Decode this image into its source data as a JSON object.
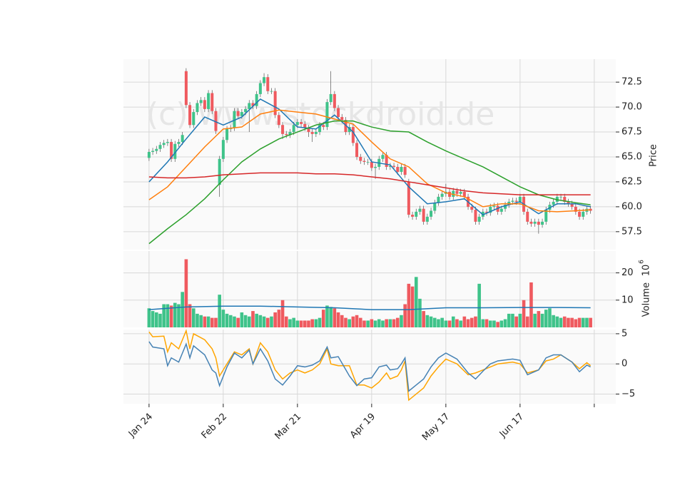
{
  "chart_data": [
    {
      "type": "candlestick",
      "watermark": "(c) www.stockdroid.de",
      "ylabel": "Price",
      "up_color": "#3fc38a",
      "down_color": "#ef5a5f",
      "open": [
        64.9,
        65.5,
        65.6,
        65.8,
        66.2,
        66.4,
        66.5,
        64.8,
        66.3,
        66.5,
        73.6,
        70.2,
        68.2,
        69.5,
        70.4,
        70.7,
        69.8,
        71.4,
        69.6,
        62.2,
        64.8,
        66.7,
        67.8,
        67.9,
        69.6,
        69.1,
        69.5,
        69.8,
        70.4,
        70.1,
        71.3,
        72.4,
        73.0,
        71.6,
        71.6,
        69.2,
        68.2,
        67.3,
        67.2,
        67.5,
        68.2,
        68.5,
        68.3,
        67.9,
        67.5,
        67.3,
        67.5,
        68.2,
        68.0,
        70.5,
        71.3,
        69.9,
        69.0,
        68.7,
        67.5,
        68.0,
        66.4,
        65.0,
        64.6,
        64.5,
        64.5,
        63.9,
        64.0,
        64.8,
        65.2,
        64.0,
        64.1,
        64.0,
        63.5,
        64.0,
        62.5,
        59.2,
        59.0,
        59.5,
        59.8,
        58.5,
        59.0,
        59.6,
        60.4,
        61.0,
        61.3,
        61.5,
        61.0,
        61.6,
        61.3,
        61.5,
        61.0,
        60.0,
        59.7,
        58.5,
        59.0,
        59.5,
        59.4,
        60.0,
        60.1,
        59.5,
        59.8,
        60.2,
        60.5,
        60.6,
        60.5,
        61.0,
        59.5,
        58.5,
        58.3,
        58.5,
        58.2,
        58.5,
        59.7,
        60.2,
        60.5,
        61.0,
        61.0,
        60.5,
        60.3,
        60.0,
        59.5,
        59.0,
        59.5,
        59.8
      ],
      "high": [
        65.8,
        65.9,
        66.1,
        66.5,
        66.7,
        66.8,
        66.8,
        66.6,
        66.8,
        67.5,
        73.9,
        70.5,
        69.8,
        70.7,
        71.0,
        71.0,
        71.7,
        71.7,
        69.9,
        65.1,
        67.0,
        68.1,
        68.2,
        69.9,
        69.9,
        69.8,
        70.1,
        70.7,
        70.7,
        71.6,
        72.7,
        73.4,
        73.3,
        71.9,
        71.9,
        69.5,
        68.5,
        67.6,
        67.8,
        68.5,
        68.8,
        68.8,
        68.6,
        68.2,
        67.8,
        67.8,
        68.5,
        68.5,
        70.8,
        73.6,
        71.6,
        70.2,
        69.3,
        69.0,
        68.3,
        68.3,
        66.7,
        65.3,
        64.9,
        64.8,
        64.8,
        64.3,
        65.1,
        65.5,
        65.5,
        64.4,
        64.4,
        64.3,
        64.3,
        64.3,
        62.8,
        59.5,
        59.8,
        60.1,
        60.1,
        59.3,
        59.9,
        60.7,
        61.3,
        61.6,
        62.3,
        61.8,
        61.9,
        61.9,
        61.8,
        61.8,
        61.3,
        60.3,
        60.0,
        59.3,
        59.8,
        59.8,
        60.3,
        60.4,
        60.4,
        60.1,
        60.5,
        60.8,
        60.9,
        60.9,
        61.3,
        61.3,
        59.8,
        58.8,
        58.8,
        58.8,
        58.8,
        60.0,
        60.5,
        60.8,
        61.3,
        61.3,
        61.3,
        60.8,
        60.6,
        60.3,
        59.8,
        59.8,
        60.1,
        60.1
      ],
      "low": [
        64.6,
        65.2,
        65.3,
        65.5,
        65.9,
        66.1,
        64.5,
        64.5,
        66.0,
        66.2,
        69.9,
        67.9,
        67.9,
        69.2,
        70.1,
        69.5,
        69.5,
        69.3,
        67.3,
        61.0,
        64.5,
        66.4,
        67.5,
        67.6,
        68.8,
        68.8,
        69.2,
        67.5,
        69.8,
        69.8,
        71.0,
        72.1,
        71.3,
        71.3,
        68.9,
        67.9,
        66.8,
        66.9,
        66.9,
        67.2,
        67.9,
        68.0,
        67.6,
        67.0,
        66.5,
        67.0,
        67.2,
        67.7,
        67.7,
        70.2,
        69.6,
        68.7,
        68.4,
        67.2,
        67.2,
        66.1,
        64.7,
        64.3,
        64.2,
        64.2,
        63.6,
        62.8,
        63.7,
        64.5,
        63.7,
        63.7,
        63.7,
        63.2,
        63.2,
        62.9,
        58.9,
        58.7,
        58.7,
        59.2,
        58.2,
        58.2,
        58.7,
        59.3,
        60.1,
        60.7,
        61.0,
        60.7,
        60.7,
        61.0,
        61.0,
        60.7,
        59.7,
        59.4,
        58.2,
        58.2,
        58.7,
        59.1,
        59.1,
        59.7,
        59.2,
        59.2,
        59.5,
        59.9,
        60.2,
        60.2,
        60.2,
        59.2,
        58.2,
        58.0,
        58.0,
        57.3,
        57.9,
        58.2,
        59.4,
        59.9,
        60.2,
        60.7,
        60.2,
        60.0,
        59.7,
        59.2,
        58.7,
        58.7,
        59.2,
        59.3
      ],
      "close": [
        65.5,
        65.6,
        65.8,
        66.2,
        66.4,
        66.5,
        64.8,
        66.3,
        66.5,
        67.2,
        70.2,
        68.2,
        69.5,
        70.4,
        70.7,
        69.8,
        71.4,
        69.6,
        67.6,
        64.8,
        66.7,
        67.8,
        67.9,
        69.6,
        69.1,
        69.5,
        69.8,
        70.4,
        70.1,
        71.3,
        72.4,
        73.0,
        71.6,
        71.6,
        69.2,
        68.2,
        67.3,
        67.2,
        67.5,
        68.2,
        68.5,
        68.3,
        67.9,
        67.5,
        67.3,
        67.5,
        68.2,
        68.0,
        70.5,
        71.3,
        69.9,
        69.0,
        68.7,
        67.5,
        68.0,
        66.4,
        65.0,
        64.6,
        64.5,
        64.5,
        63.9,
        64.0,
        64.8,
        65.2,
        64.0,
        64.1,
        64.0,
        63.5,
        64.0,
        63.2,
        59.2,
        59.0,
        59.5,
        59.8,
        58.5,
        59.0,
        59.6,
        60.4,
        61.0,
        61.3,
        61.5,
        61.0,
        61.6,
        61.3,
        61.5,
        61.0,
        60.0,
        59.7,
        58.5,
        59.0,
        59.5,
        59.4,
        60.0,
        60.1,
        59.5,
        59.8,
        60.2,
        60.5,
        60.6,
        60.5,
        61.0,
        59.5,
        58.5,
        58.3,
        58.5,
        58.2,
        58.5,
        59.7,
        60.2,
        60.5,
        61.0,
        61.0,
        60.5,
        60.3,
        60.0,
        59.5,
        59.0,
        59.5,
        59.8,
        59.6
      ],
      "series": [
        {
          "color": "#1f77b4",
          "x": [
            0,
            5,
            10,
            15,
            20,
            25,
            30,
            35,
            40,
            45,
            50,
            55,
            60,
            65,
            70,
            75,
            80,
            85,
            90,
            95,
            100,
            105,
            110,
            115,
            119
          ],
          "values": [
            62.5,
            64.5,
            66.8,
            69,
            68.2,
            69,
            70.8,
            69.8,
            68,
            67.8,
            69.2,
            67.5,
            64.5,
            64.2,
            62,
            60.3,
            60.5,
            60.8,
            59.2,
            60,
            60.5,
            59.3,
            60.3,
            60.3,
            60
          ]
        },
        {
          "color": "#ff7f0e",
          "x": [
            0,
            5,
            10,
            15,
            20,
            25,
            30,
            35,
            40,
            45,
            50,
            55,
            60,
            65,
            70,
            75,
            80,
            85,
            90,
            95,
            100,
            105,
            110,
            115,
            119
          ],
          "values": [
            60.7,
            62,
            64,
            66,
            67.8,
            68,
            69.3,
            69.7,
            69.5,
            69.3,
            68.8,
            68.3,
            66.5,
            64.8,
            64,
            62.3,
            61.4,
            61,
            60,
            60.3,
            60.3,
            59.6,
            59.5,
            59.6,
            59.7
          ]
        },
        {
          "color": "#2ca02c",
          "x": [
            0,
            5,
            10,
            15,
            20,
            25,
            30,
            35,
            40,
            45,
            50,
            55,
            60,
            65,
            70,
            75,
            80,
            85,
            90,
            95,
            100,
            105,
            110,
            115,
            119
          ],
          "values": [
            56.3,
            57.8,
            59.2,
            60.8,
            62.7,
            64.5,
            65.8,
            66.8,
            67.5,
            68.2,
            68.6,
            68.6,
            68,
            67.6,
            67.5,
            66.5,
            65.6,
            64.8,
            64,
            63,
            62,
            61.2,
            60.7,
            60.4,
            60.2
          ]
        },
        {
          "color": "#d62728",
          "x": [
            0,
            5,
            10,
            15,
            20,
            25,
            30,
            35,
            40,
            45,
            50,
            55,
            60,
            65,
            70,
            75,
            80,
            85,
            90,
            95,
            100,
            105,
            110,
            115,
            119
          ],
          "values": [
            63,
            62.9,
            62.9,
            63,
            63.2,
            63.3,
            63.4,
            63.4,
            63.4,
            63.3,
            63.3,
            63.2,
            63,
            62.8,
            62.5,
            62.2,
            61.9,
            61.6,
            61.4,
            61.3,
            61.2,
            61.2,
            61.2,
            61.2,
            61.2
          ]
        }
      ],
      "ylim": [
        55.7,
        74.8
      ],
      "yticks": [
        57.5,
        {
          "value": 60,
          "label": "60.0"
        },
        62.5,
        {
          "value": 65,
          "label": "65.0"
        },
        67.5,
        {
          "value": 70,
          "label": "70.0"
        },
        72.5
      ],
      "grid": true
    },
    {
      "type": "bar",
      "ylabel": "Volume",
      "yunit_base": "10",
      "yunit_exp": "6",
      "values": [
        7,
        6,
        5.5,
        5,
        8.5,
        8.5,
        8,
        9,
        8.5,
        13,
        25,
        8.5,
        7,
        5,
        4.5,
        4,
        4,
        3.5,
        3.5,
        12,
        6.5,
        5,
        4.5,
        4,
        3.5,
        5.5,
        4.5,
        4,
        6,
        5,
        4.5,
        4,
        3.5,
        4,
        5.5,
        6.5,
        10,
        4,
        3,
        3.5,
        2.5,
        2.5,
        2.5,
        2.5,
        3,
        3,
        3.5,
        6.5,
        8,
        7.5,
        7,
        5.5,
        4.5,
        3.5,
        3,
        4,
        4.5,
        3.5,
        2.5,
        2.5,
        3,
        2.5,
        3,
        2.5,
        3,
        3,
        3,
        3.5,
        4.5,
        8.5,
        16,
        15,
        18.5,
        10.5,
        6,
        4.5,
        4,
        3.5,
        3,
        3.5,
        2.5,
        2.5,
        4,
        3,
        2.5,
        4,
        3,
        3.5,
        4,
        16,
        3,
        3,
        2.5,
        2.5,
        2,
        2.5,
        3,
        5,
        5,
        4,
        5,
        10,
        4,
        16.5,
        5,
        6,
        5,
        6.5,
        7,
        4.5,
        4,
        3.5,
        4,
        3.5,
        3.5,
        3,
        3.5,
        3.5,
        3.5,
        3.5
      ],
      "series": [
        {
          "color": "#1f77b4",
          "x": [
            0,
            10,
            20,
            30,
            40,
            50,
            60,
            70,
            80,
            90,
            100,
            110,
            119
          ],
          "values": [
            6.5,
            7.5,
            7.8,
            7.8,
            7.5,
            7.2,
            6.5,
            6.5,
            7.2,
            7.2,
            7.3,
            7.3,
            7.2
          ]
        }
      ],
      "ylim": [
        0,
        28
      ],
      "yticks": [
        10,
        20
      ],
      "grid": true
    },
    {
      "type": "line",
      "series": [
        {
          "color": "#ffa500",
          "x": [
            0,
            1,
            4,
            5,
            6,
            8,
            10,
            11,
            12,
            15,
            17,
            18,
            19,
            21,
            23,
            25,
            27,
            28,
            30,
            32,
            34,
            36,
            38,
            40,
            42,
            44,
            46,
            48,
            49,
            51,
            54,
            56,
            58,
            60,
            62,
            64,
            65,
            67,
            68,
            69,
            70,
            72,
            74,
            76,
            78,
            80,
            83,
            86,
            88,
            90,
            92,
            94,
            98,
            100,
            102,
            105,
            107,
            109,
            111,
            114,
            116,
            118,
            119
          ],
          "values": [
            5.3,
            4.5,
            4.6,
            2,
            3.5,
            2.5,
            5.5,
            2.5,
            5,
            4,
            2.5,
            1,
            -2,
            0,
            2,
            1.5,
            2.5,
            0,
            3.5,
            2,
            -1,
            -2.5,
            -1.5,
            -1,
            -1.5,
            -1,
            0,
            2.5,
            0,
            -0.3,
            -0.3,
            -3.5,
            -3.5,
            -4,
            -3,
            -1.5,
            -2.5,
            -2,
            -1,
            0.5,
            -6,
            -5,
            -4,
            -2,
            -0.5,
            0.8,
            0,
            -1.8,
            -1.5,
            -1,
            -0.5,
            0,
            0.3,
            0,
            -1.5,
            -1,
            0.5,
            0.8,
            1.5,
            0.3,
            -0.8,
            0.2,
            -0.3
          ]
        },
        {
          "color": "#4682b4",
          "x": [
            0,
            1,
            4,
            5,
            6,
            8,
            10,
            11,
            12,
            15,
            17,
            18,
            19,
            21,
            23,
            25,
            27,
            28,
            30,
            32,
            34,
            36,
            38,
            40,
            42,
            44,
            46,
            48,
            49,
            51,
            54,
            56,
            58,
            60,
            62,
            64,
            65,
            67,
            68,
            69,
            70,
            72,
            74,
            76,
            78,
            80,
            83,
            86,
            88,
            90,
            92,
            94,
            98,
            100,
            102,
            105,
            107,
            109,
            111,
            114,
            116,
            118,
            119
          ],
          "values": [
            3.7,
            2.8,
            2.5,
            -0.3,
            1,
            0.3,
            3.3,
            1,
            3,
            1.5,
            -1,
            -1.5,
            -3.6,
            -0.5,
            1.8,
            1,
            2.3,
            0,
            2.5,
            0.5,
            -2.5,
            -3.5,
            -2,
            -0.3,
            -0.5,
            -0.2,
            0.5,
            2.8,
            1,
            1.2,
            -2,
            -3.6,
            -2.5,
            -2.3,
            -0.5,
            -0.2,
            -1,
            -0.8,
            0,
            1,
            -4.5,
            -3.5,
            -2.5,
            -0.5,
            1,
            1.8,
            0.8,
            -1.5,
            -2.5,
            -1.2,
            0,
            0.5,
            0.8,
            0.6,
            -1.8,
            -1,
            1,
            1.5,
            1.5,
            0.3,
            -1.3,
            -0.2,
            -0.5
          ]
        }
      ],
      "ylim": [
        -6.6,
        5.7
      ],
      "yticks": [
        {
          "value": -5,
          "label": "−5"
        },
        0,
        5
      ],
      "xlim": [
        -6.9,
        125.8
      ],
      "xticks": [
        {
          "value": 0,
          "label": "Jan 24"
        },
        {
          "value": 20,
          "label": "Feb 22"
        },
        {
          "value": 40,
          "label": "Mar 21"
        },
        {
          "value": 60,
          "label": "Apr 19"
        },
        {
          "value": 80,
          "label": "May 17"
        },
        {
          "value": 100,
          "label": "Jun 17"
        },
        {
          "value": 120,
          "label": null
        }
      ],
      "grid": true
    }
  ]
}
